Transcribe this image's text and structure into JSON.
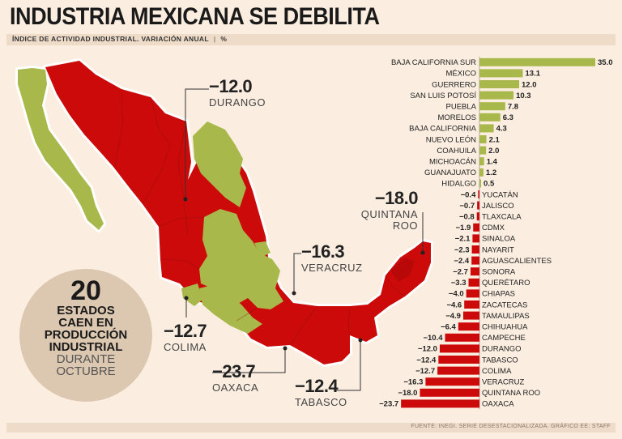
{
  "title": "INDUSTRIA MEXICANA SE DEBILITA",
  "subtitle": "ÍNDICE DE ACTIVIDAD INDUSTRIAL. VARIACIÓN ANUAL",
  "unit": "%",
  "source": "FUENTE: INEGI. SERIE DESESTACIONALIZADA. GRÁFICO EE: STAFF",
  "colors": {
    "positive": "#a8b84a",
    "negative": "#cc0a0a",
    "map_outline": "#ffffff",
    "background": "#fbeee0",
    "callout_bg": "#dcc7b0"
  },
  "callout": {
    "number": "20",
    "line1": "ESTADOS",
    "line2": "CAEN EN",
    "line3": "PRODUCCIÓN",
    "line4": "INDUSTRIAL",
    "line5": "DURANTE",
    "line6": "OCTUBRE"
  },
  "map_annotations": [
    {
      "value": "−12.0",
      "state": "DURANGO"
    },
    {
      "value": "−18.0",
      "state1": "QUINTANA",
      "state2": "ROO"
    },
    {
      "value": "−16.3",
      "state": "VERACRUZ"
    },
    {
      "value": "−12.7",
      "state": "COLIMA"
    },
    {
      "value": "−23.7",
      "state": "OAXACA"
    },
    {
      "value": "−12.4",
      "state": "TABASCO"
    }
  ],
  "chart_data": {
    "type": "bar",
    "orientation": "horizontal",
    "title": "ÍNDICE DE ACTIVIDAD INDUSTRIAL. VARIACIÓN ANUAL",
    "unit": "%",
    "categories": [
      "BAJA CALIFORNIA SUR",
      "MÉXICO",
      "GUERRERO",
      "SAN LUIS POTOSÍ",
      "PUEBLA",
      "MORELOS",
      "BAJA CALIFORNIA",
      "NUEVO LEÓN",
      "COAHUILA",
      "MICHOACÁN",
      "GUANAJUATO",
      "HIDALGO",
      "YUCATÁN",
      "JALISCO",
      "TLAXCALA",
      "CDMX",
      "SINALOA",
      "NAYARIT",
      "AGUASCALIENTES",
      "SONORA",
      "QUERÉTARO",
      "CHIAPAS",
      "ZACATECAS",
      "TAMAULIPAS",
      "CHIHUAHUA",
      "CAMPECHE",
      "DURANGO",
      "TABASCO",
      "COLIMA",
      "VERACRUZ",
      "QUINTANA ROO",
      "OAXACA"
    ],
    "values": [
      35.0,
      13.1,
      12.0,
      10.3,
      7.8,
      6.3,
      4.3,
      2.1,
      2.0,
      1.4,
      1.2,
      0.5,
      -0.4,
      -0.7,
      -0.8,
      -1.9,
      -2.1,
      -2.3,
      -2.4,
      -2.7,
      -3.3,
      -4.0,
      -4.6,
      -4.9,
      -6.4,
      -10.4,
      -12.0,
      -12.4,
      -12.7,
      -16.3,
      -18.0,
      -23.7
    ],
    "labels": [
      "35.0",
      "13.1",
      "12.0",
      "10.3",
      "7.8",
      "6.3",
      "4.3",
      "2.1",
      "2.0",
      "1.4",
      "1.2",
      "0.5",
      "−0.4",
      "−0.7",
      "−0.8",
      "−1.9",
      "−2.1",
      "−2.3",
      "−2.4",
      "−2.7",
      "−3.3",
      "−4.0",
      "−4.6",
      "−4.9",
      "−6.4",
      "−10.4",
      "−12.0",
      "−12.4",
      "−12.7",
      "−16.3",
      "−18.0",
      "−23.7"
    ],
    "xlim": [
      -23.7,
      35.0
    ],
    "grid": false,
    "legend": "none"
  }
}
